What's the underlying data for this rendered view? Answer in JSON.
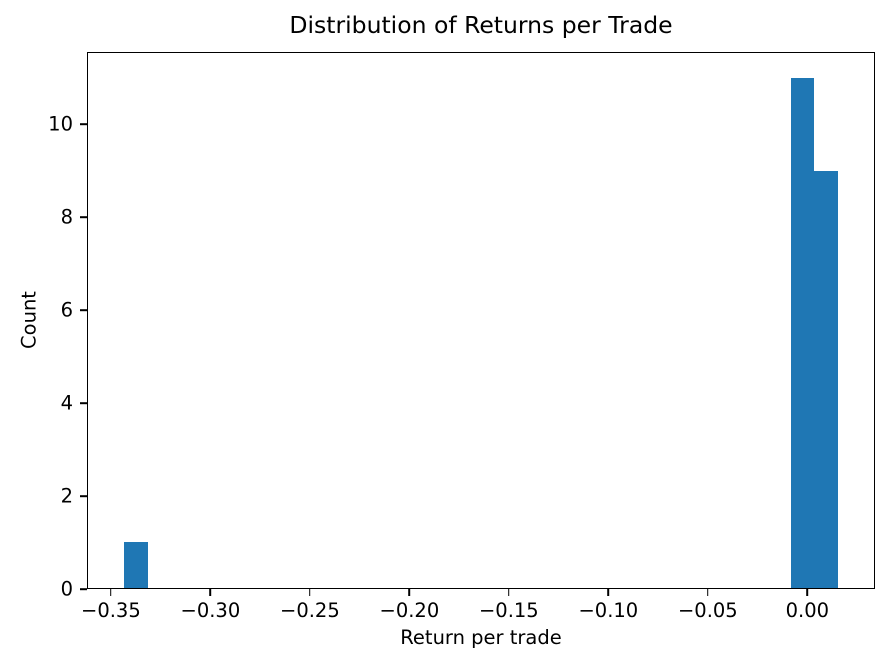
{
  "chart_data": {
    "type": "bar",
    "subtype": "histogram",
    "title": "Distribution of Returns per Trade",
    "xlabel": "Return per trade",
    "ylabel": "Count",
    "bar_color": "#1f77b4",
    "axis_color": "#000000",
    "background_color": "#ffffff",
    "grid": false,
    "legend": null,
    "xlim": [
      -0.362,
      0.034
    ],
    "ylim": [
      0,
      11.55
    ],
    "bin_width": 0.012,
    "bars": [
      {
        "x0": -0.3438,
        "x1": -0.3318,
        "count": 1
      },
      {
        "x0": -0.008,
        "x1": 0.004,
        "count": 11
      },
      {
        "x0": 0.004,
        "x1": 0.0161,
        "count": 9
      }
    ],
    "x_ticks": [
      {
        "value": -0.35,
        "label": "−0.35"
      },
      {
        "value": -0.3,
        "label": "−0.30"
      },
      {
        "value": -0.25,
        "label": "−0.25"
      },
      {
        "value": -0.2,
        "label": "−0.20"
      },
      {
        "value": -0.15,
        "label": "−0.15"
      },
      {
        "value": -0.1,
        "label": "−0.10"
      },
      {
        "value": -0.05,
        "label": "−0.05"
      },
      {
        "value": 0.0,
        "label": "0.00"
      }
    ],
    "y_ticks": [
      {
        "value": 0,
        "label": "0"
      },
      {
        "value": 2,
        "label": "2"
      },
      {
        "value": 4,
        "label": "4"
      },
      {
        "value": 6,
        "label": "6"
      },
      {
        "value": 8,
        "label": "8"
      },
      {
        "value": 10,
        "label": "10"
      }
    ]
  }
}
